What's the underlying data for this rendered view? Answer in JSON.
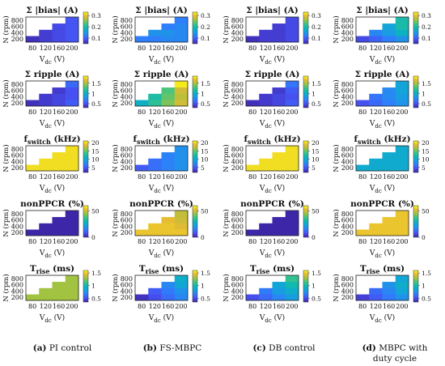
{
  "axes": {
    "xlabel_main": "V",
    "xlabel_sub": "dc",
    "xlabel_unit": "(V)",
    "ylabel": "N (rpm)",
    "x_ticks": [
      "80",
      "120",
      "160",
      "200"
    ],
    "y_ticks": [
      "200",
      "400",
      "600",
      "800"
    ]
  },
  "columns": [
    {
      "letter": "(a)",
      "caption": "PI control",
      "caption_line2": ""
    },
    {
      "letter": "(b)",
      "caption": "FS-MBPC",
      "caption_line2": ""
    },
    {
      "letter": "(c)",
      "caption": "DB control",
      "caption_line2": ""
    },
    {
      "letter": "(d)",
      "caption": "MBPC  with",
      "caption_line2": "duty cycle"
    }
  ],
  "rows": [
    {
      "title": "Σ |bias| (A)",
      "title_main": "Σ |bias| (A)",
      "title_sub": "",
      "title_after": "",
      "colorbar": {
        "min": 0.05,
        "max": 0.33,
        "ticks": [
          "0.3",
          "0.2",
          "0.1"
        ],
        "tick_values": [
          0.3,
          0.2,
          0.1
        ]
      }
    },
    {
      "title": "Σ ripple (A)",
      "title_main": "Σ ripple (A)",
      "title_sub": "",
      "title_after": "",
      "colorbar": {
        "min": 0.3,
        "max": 1.85,
        "ticks": [
          "1.5",
          "1",
          "0.5"
        ],
        "tick_values": [
          1.5,
          1.0,
          0.5
        ]
      }
    },
    {
      "title": "f switch (kHz)",
      "title_main": "f",
      "title_sub": "switch",
      "title_after": " (kHz)",
      "colorbar": {
        "min": 2,
        "max": 21,
        "ticks": [
          "20",
          "15",
          "10",
          "5"
        ],
        "tick_values": [
          20,
          15,
          10,
          5
        ]
      }
    },
    {
      "title": "nonPPCR (%)",
      "title_main": "nonPPCR (%)",
      "title_sub": "",
      "title_after": "",
      "colorbar": {
        "min": 0,
        "max": 60,
        "ticks": [
          "50",
          "0"
        ],
        "tick_values": [
          50,
          0
        ]
      }
    },
    {
      "title": "T rise (ms)",
      "title_main": "T",
      "title_sub": "rise",
      "title_after": " (ms)",
      "colorbar": {
        "min": 0.35,
        "max": 1.6,
        "ticks": [
          "1.5",
          "1",
          "0.5"
        ],
        "tick_values": [
          1.5,
          1.0,
          0.5
        ]
      }
    }
  ],
  "chart_data": {
    "type": "heatmap",
    "x": [
      80,
      120,
      160,
      200
    ],
    "y": [
      200,
      400,
      600,
      800
    ],
    "xlabel": "Vdc (V)",
    "ylabel": "N (rpm)",
    "note": "grid[row][col] is a 4x4 matrix indexed [N index from 200 to 800][Vdc index from 80 to 200]; null = cell not filled",
    "panels": [
      {
        "metric": "Σ |bias| (A)",
        "controller": "PI control",
        "grid": [
          [
            0.06,
            0.07,
            0.08,
            0.09
          ],
          [
            null,
            0.07,
            0.08,
            0.09
          ],
          [
            null,
            null,
            0.08,
            0.09
          ],
          [
            null,
            null,
            null,
            0.09
          ]
        ]
      },
      {
        "metric": "Σ |bias| (A)",
        "controller": "FS-MBPC",
        "grid": [
          [
            0.12,
            0.12,
            0.13,
            0.13
          ],
          [
            null,
            0.14,
            0.14,
            0.13
          ],
          [
            null,
            null,
            0.12,
            0.13
          ],
          [
            null,
            null,
            null,
            0.12
          ]
        ]
      },
      {
        "metric": "Σ |bias| (A)",
        "controller": "DB control",
        "grid": [
          [
            0.06,
            0.07,
            0.07,
            0.08
          ],
          [
            null,
            0.07,
            0.07,
            0.08
          ],
          [
            null,
            null,
            0.07,
            0.08
          ],
          [
            null,
            null,
            null,
            0.08
          ]
        ]
      },
      {
        "metric": "Σ |bias| (A)",
        "controller": "MBPC with duty cycle",
        "grid": [
          [
            0.08,
            0.1,
            0.12,
            0.14
          ],
          [
            null,
            0.13,
            0.15,
            0.18
          ],
          [
            null,
            null,
            0.16,
            0.2
          ],
          [
            null,
            null,
            null,
            0.2
          ]
        ]
      },
      {
        "metric": "Σ ripple (A)",
        "controller": "PI control",
        "grid": [
          [
            0.35,
            0.4,
            0.45,
            0.55
          ],
          [
            null,
            0.4,
            0.45,
            0.5
          ],
          [
            null,
            null,
            0.4,
            0.5
          ],
          [
            null,
            null,
            null,
            0.6
          ]
        ]
      },
      {
        "metric": "Σ ripple (A)",
        "controller": "FS-MBPC",
        "grid": [
          [
            1.0,
            1.2,
            1.4,
            1.6
          ],
          [
            null,
            1.15,
            1.35,
            1.55
          ],
          [
            null,
            null,
            1.3,
            1.6
          ],
          [
            null,
            null,
            null,
            1.8
          ]
        ]
      },
      {
        "metric": "Σ ripple (A)",
        "controller": "DB control",
        "grid": [
          [
            0.35,
            0.4,
            0.45,
            0.55
          ],
          [
            null,
            0.4,
            0.45,
            0.5
          ],
          [
            null,
            null,
            0.4,
            0.55
          ],
          [
            null,
            null,
            null,
            0.65
          ]
        ]
      },
      {
        "metric": "Σ ripple (A)",
        "controller": "MBPC with duty cycle",
        "grid": [
          [
            0.5,
            0.6,
            0.7,
            0.8
          ],
          [
            null,
            0.65,
            0.75,
            0.85
          ],
          [
            null,
            null,
            0.75,
            0.9
          ],
          [
            null,
            null,
            null,
            0.9
          ]
        ]
      },
      {
        "metric": "f switch (kHz)",
        "controller": "PI control",
        "grid": [
          [
            20,
            20,
            20,
            20
          ],
          [
            null,
            20,
            20,
            20
          ],
          [
            null,
            null,
            20,
            20
          ],
          [
            null,
            null,
            null,
            20
          ]
        ]
      },
      {
        "metric": "f switch (kHz)",
        "controller": "FS-MBPC",
        "grid": [
          [
            5,
            6,
            7,
            8
          ],
          [
            null,
            6,
            7,
            8
          ],
          [
            null,
            null,
            7,
            8
          ],
          [
            null,
            null,
            null,
            8
          ]
        ]
      },
      {
        "metric": "f switch (kHz)",
        "controller": "DB control",
        "grid": [
          [
            20,
            20,
            20,
            20
          ],
          [
            null,
            20,
            20,
            20
          ],
          [
            null,
            null,
            20,
            20
          ],
          [
            null,
            null,
            null,
            20
          ]
        ]
      },
      {
        "metric": "f switch (kHz)",
        "controller": "MBPC with duty cycle",
        "grid": [
          [
            10,
            10,
            10,
            10
          ],
          [
            null,
            10,
            10,
            10
          ],
          [
            null,
            null,
            10,
            10
          ],
          [
            null,
            null,
            null,
            10
          ]
        ]
      },
      {
        "metric": "nonPPCR (%)",
        "controller": "PI control",
        "grid": [
          [
            0,
            0,
            0,
            0
          ],
          [
            null,
            0,
            0,
            0
          ],
          [
            null,
            null,
            0,
            0
          ],
          [
            null,
            null,
            null,
            0
          ]
        ]
      },
      {
        "metric": "nonPPCR (%)",
        "controller": "FS-MBPC",
        "grid": [
          [
            54,
            54,
            54,
            54
          ],
          [
            null,
            54,
            54,
            52
          ],
          [
            null,
            null,
            53,
            50
          ],
          [
            null,
            null,
            null,
            49
          ]
        ]
      },
      {
        "metric": "nonPPCR (%)",
        "controller": "DB control",
        "grid": [
          [
            0,
            0,
            0,
            0
          ],
          [
            null,
            0,
            0,
            0
          ],
          [
            null,
            null,
            0,
            0
          ],
          [
            null,
            null,
            null,
            0
          ]
        ]
      },
      {
        "metric": "nonPPCR (%)",
        "controller": "MBPC with duty cycle",
        "grid": [
          [
            54,
            54,
            54,
            54
          ],
          [
            null,
            54,
            54,
            54
          ],
          [
            null,
            null,
            54,
            54
          ],
          [
            null,
            null,
            null,
            54
          ]
        ]
      },
      {
        "metric": "T rise (ms)",
        "controller": "PI control",
        "grid": [
          [
            1.3,
            1.3,
            1.3,
            1.3
          ],
          [
            null,
            1.3,
            1.3,
            1.3
          ],
          [
            null,
            null,
            1.3,
            1.3
          ],
          [
            null,
            null,
            null,
            1.3
          ]
        ]
      },
      {
        "metric": "T rise (ms)",
        "controller": "FS-MBPC",
        "grid": [
          [
            0.4,
            0.5,
            0.6,
            0.7
          ],
          [
            null,
            0.55,
            0.65,
            0.75
          ],
          [
            null,
            null,
            0.7,
            0.85
          ],
          [
            null,
            null,
            null,
            0.9
          ]
        ]
      },
      {
        "metric": "T rise (ms)",
        "controller": "DB control",
        "grid": [
          [
            0.5,
            0.6,
            0.7,
            0.8
          ],
          [
            null,
            0.65,
            0.8,
            0.9
          ],
          [
            null,
            null,
            0.85,
            1.0
          ],
          [
            null,
            null,
            null,
            1.1
          ]
        ]
      },
      {
        "metric": "T rise (ms)",
        "controller": "MBPC with duty cycle",
        "grid": [
          [
            0.45,
            0.55,
            0.65,
            0.75
          ],
          [
            null,
            0.6,
            0.7,
            0.85
          ],
          [
            null,
            null,
            0.75,
            0.9
          ],
          [
            null,
            null,
            null,
            0.85
          ]
        ]
      }
    ]
  }
}
